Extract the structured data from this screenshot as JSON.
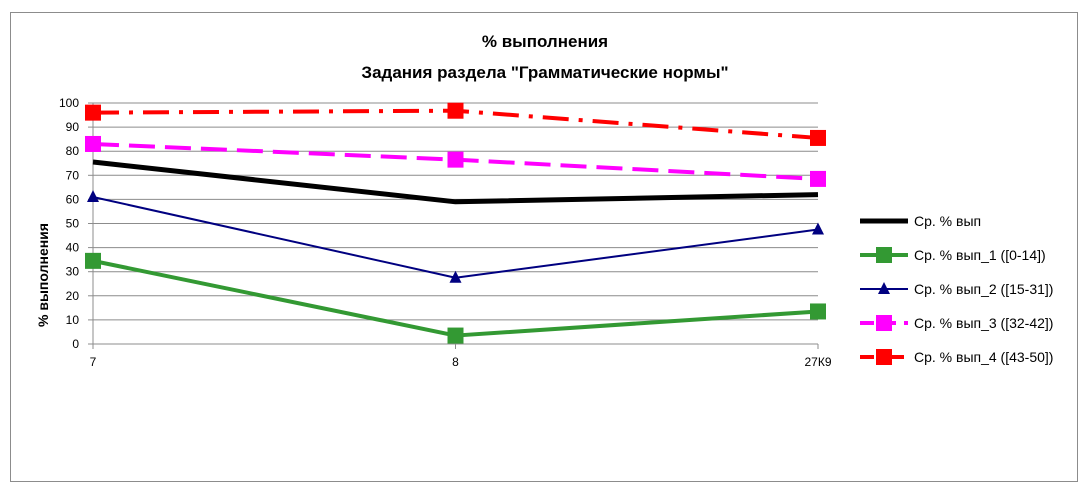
{
  "chart_data": {
    "type": "line",
    "title": "% выполнения",
    "subtitle": "Задания раздела \"Грамматические нормы\"",
    "xlabel": "",
    "ylabel": "% выполнения",
    "categories": [
      "7",
      "8",
      "27К9"
    ],
    "ylim": [
      0,
      100
    ],
    "yticks": [
      0,
      10,
      20,
      30,
      40,
      50,
      60,
      70,
      80,
      90,
      100
    ],
    "grid": true,
    "legend_position": "right",
    "series": [
      {
        "name": "Ср. % вып",
        "values": [
          75.5,
          59,
          62
        ],
        "color": "#000000",
        "dash": "solid",
        "marker": "none",
        "width": 5
      },
      {
        "name": "Ср. % вып_1 ([0-14])",
        "values": [
          34.5,
          3.5,
          13.5
        ],
        "color": "#339933",
        "dash": "solid",
        "marker": "square",
        "width": 4
      },
      {
        "name": "Ср. % вып_2 ([15-31])",
        "values": [
          61,
          27.5,
          47.5
        ],
        "color": "#000080",
        "dash": "solid",
        "marker": "triangle",
        "width": 2
      },
      {
        "name": "Ср. % вып_3 ([32-42])",
        "values": [
          83,
          76.5,
          68.5
        ],
        "color": "#ff00ff",
        "dash": "dashed",
        "marker": "square",
        "width": 4
      },
      {
        "name": "Ср. % вып_4 ([43-50])",
        "values": [
          96,
          96.8,
          85.5
        ],
        "color": "#ff0000",
        "dash": "dashdot",
        "marker": "square",
        "width": 4
      }
    ]
  }
}
